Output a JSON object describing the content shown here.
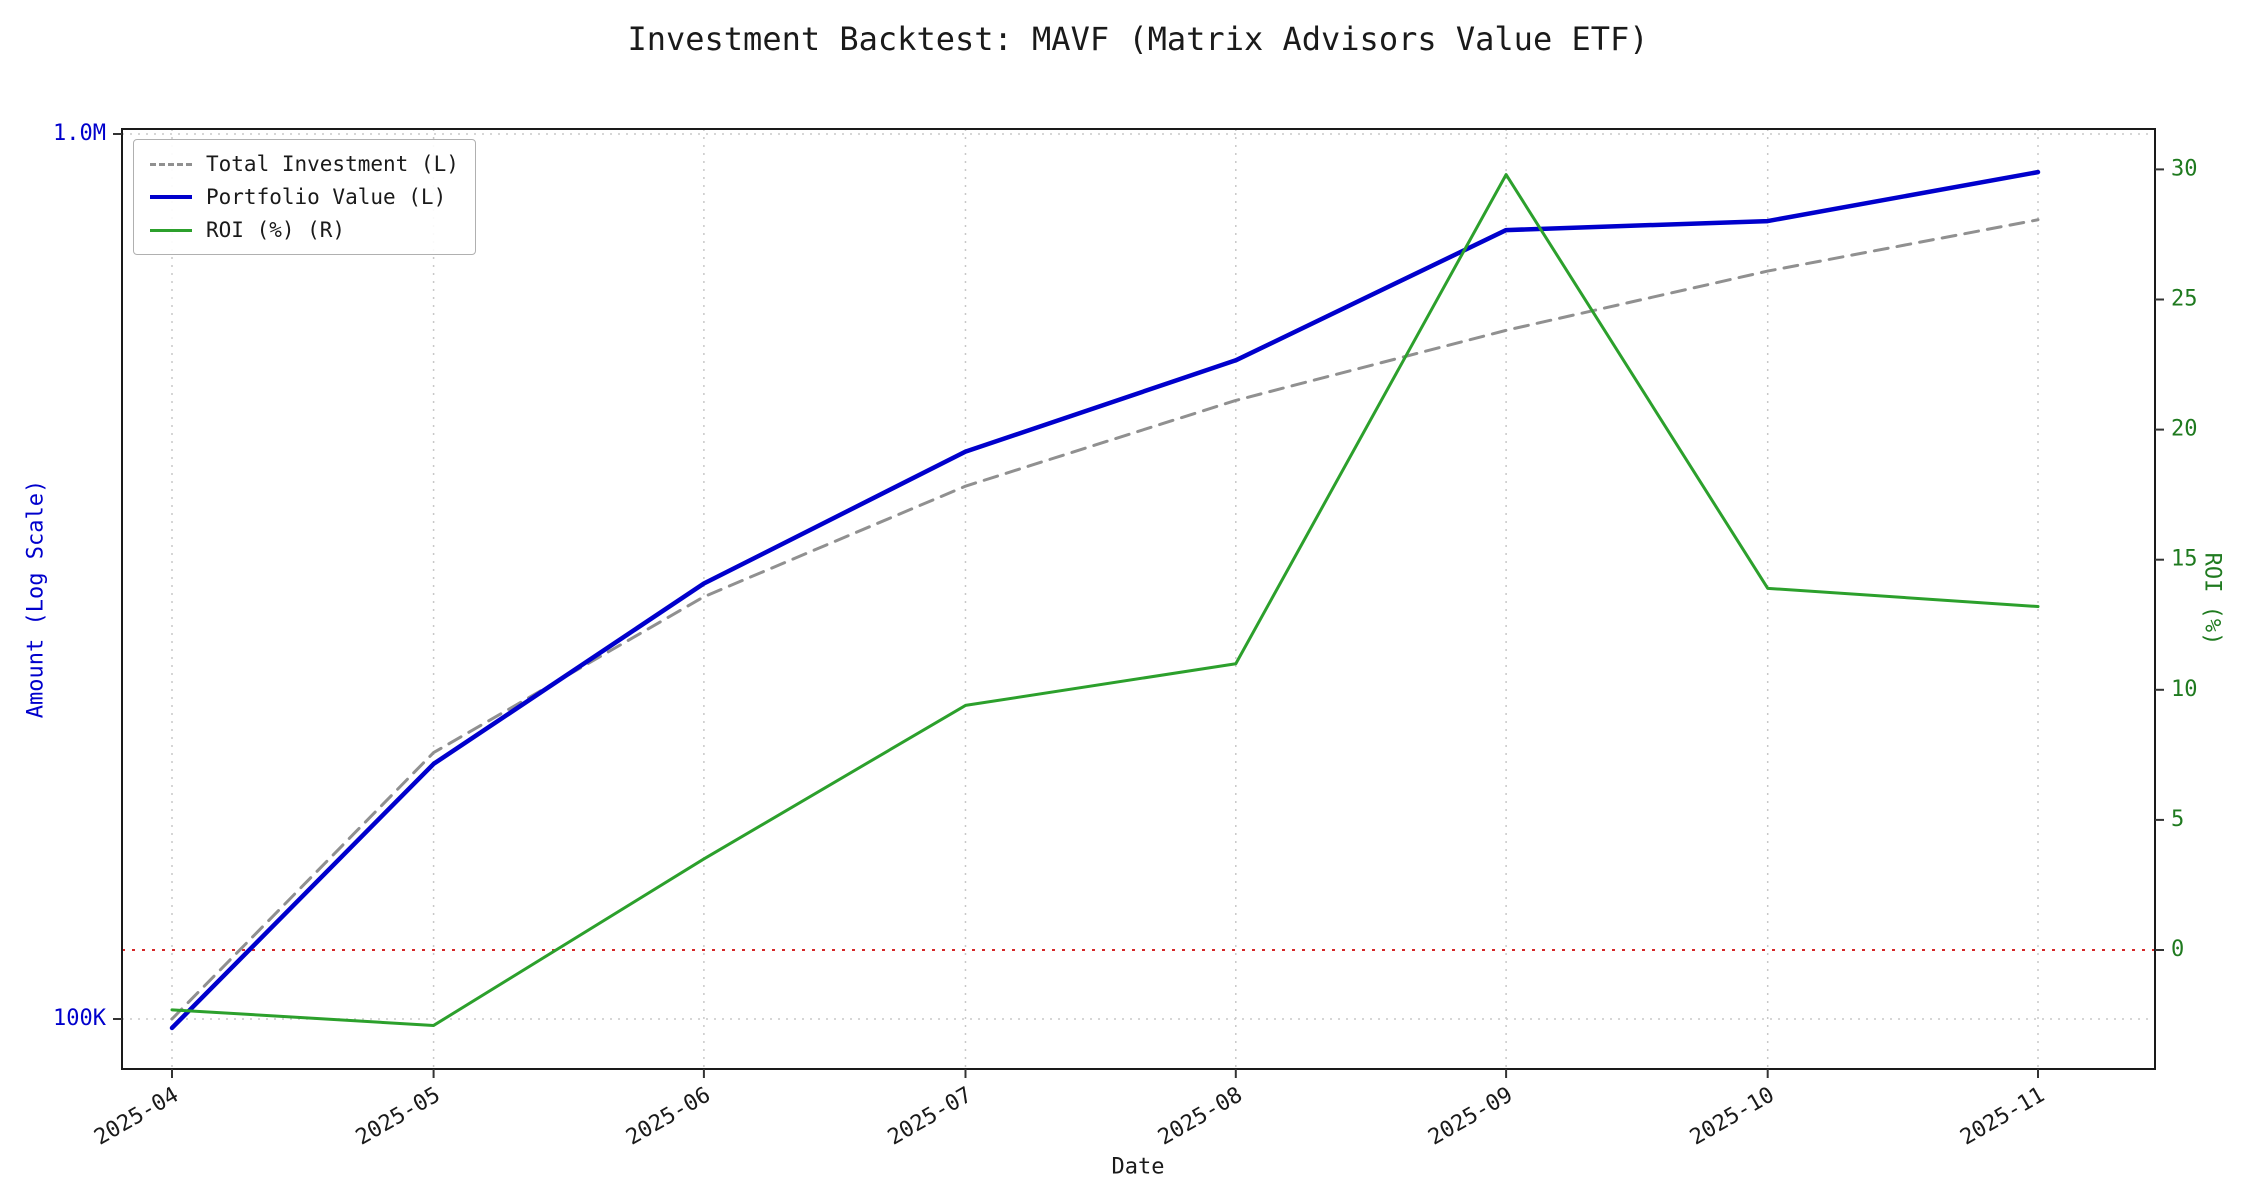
{
  "colors": {
    "blue": "#0000cc",
    "green": "#2ca02c",
    "green_label": "#1f7a1f",
    "gray": "#909090",
    "red": "#d62728",
    "grid": "#c8c8c8",
    "frame": "#1a1a1a",
    "text": "#1a1a1a",
    "background": "#ffffff"
  },
  "chart_data": {
    "type": "line",
    "title": "Investment Backtest: MAVF (Matrix Advisors Value ETF)",
    "xlabel": "Date",
    "ylabel_left": "Amount (Log Scale)",
    "ylabel_right": "ROI (%)",
    "x": [
      "2025-04",
      "2025-05",
      "2025-06",
      "2025-07",
      "2025-08",
      "2025-09",
      "2025-10",
      "2025-11"
    ],
    "series": [
      {
        "name": "Total Investment (L)",
        "axis": "left",
        "style": "dashed",
        "color": "#909090",
        "values": [
          100000,
          200000,
          300000,
          400000,
          500000,
          600000,
          700000,
          800000
        ]
      },
      {
        "name": "Portfolio Value (L)",
        "axis": "left",
        "style": "solid",
        "color": "#0000cc",
        "values": [
          97700,
          194200,
          310500,
          437600,
          555000,
          778800,
          797300,
          905600
        ]
      },
      {
        "name": "ROI (%) (R)",
        "axis": "right",
        "style": "solid",
        "color": "#2ca02c",
        "values": [
          -2.3,
          -2.9,
          3.5,
          9.4,
          11.0,
          29.8,
          13.9,
          13.2
        ]
      }
    ],
    "left_axis": {
      "scale": "log",
      "range": [
        87800,
        1011000
      ],
      "ticks": [
        {
          "label": "100K",
          "value": 100000
        },
        {
          "label": "1.0M",
          "value": 1000000
        }
      ]
    },
    "right_axis": {
      "scale": "linear",
      "range": [
        -4.6,
        31.6
      ],
      "ticks": [
        0,
        5,
        10,
        15,
        20,
        25,
        30
      ]
    },
    "zero_line": {
      "value": 0,
      "color": "#d62728",
      "style": "dotted"
    },
    "legend_position": "upper-left",
    "grid": true
  }
}
